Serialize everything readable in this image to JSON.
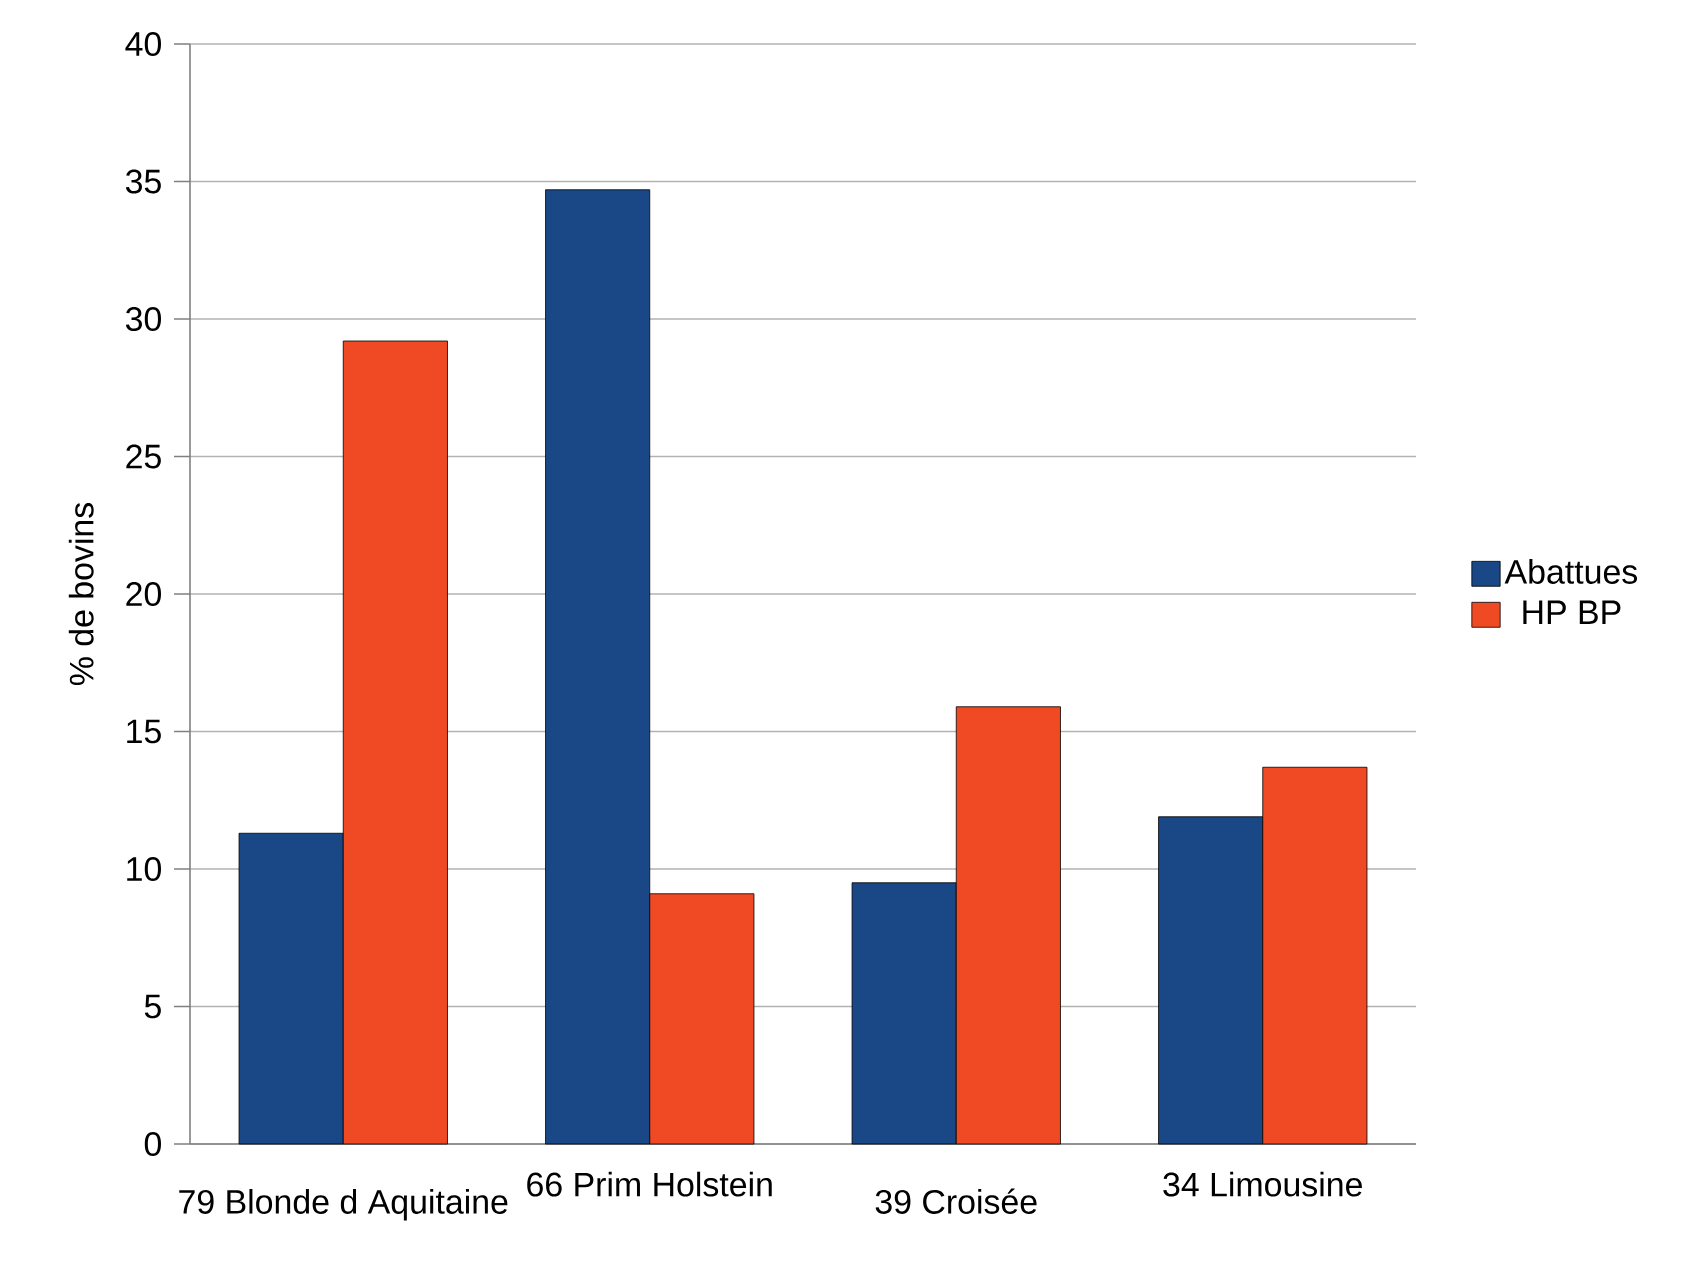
{
  "chart_data": {
    "type": "bar",
    "ylabel": "% de bovins",
    "categories": [
      "79 Blonde d Aquitaine",
      "66 Prim Holstein",
      "39 Croisée",
      "34 Limousine"
    ],
    "series": [
      {
        "name": "Abattues",
        "color": "#1a4785",
        "values": [
          11.3,
          34.7,
          9.5,
          11.9
        ]
      },
      {
        "name": "HP BP",
        "color": "#f04a24",
        "values": [
          29.2,
          9.1,
          15.9,
          13.7
        ]
      }
    ],
    "ylim": [
      0,
      40
    ],
    "yticks": [
      0,
      5,
      10,
      15,
      20,
      25,
      30,
      35,
      40
    ],
    "grid": "y",
    "legend": "right"
  }
}
